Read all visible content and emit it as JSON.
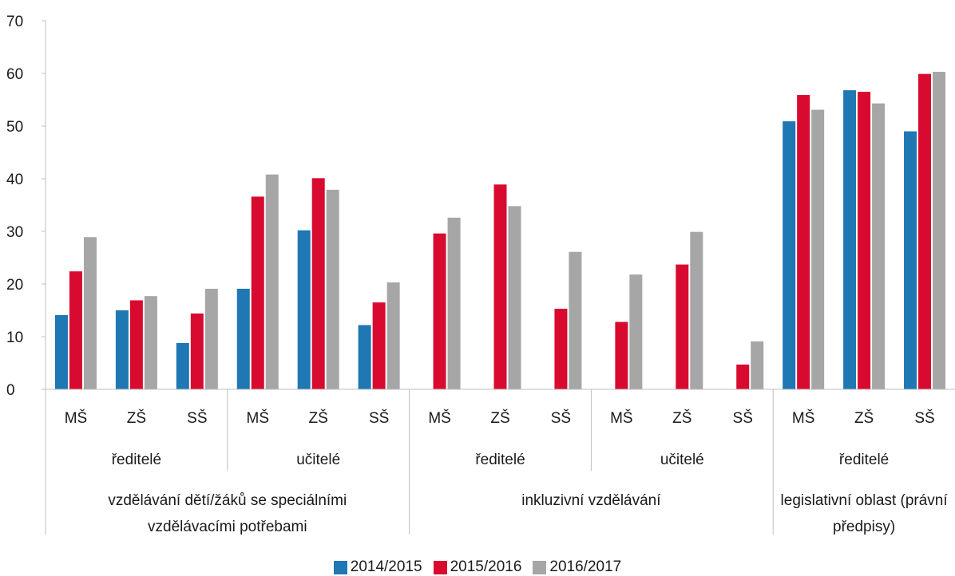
{
  "chart_data": {
    "type": "bar",
    "ylim": [
      0,
      70
    ],
    "yticks": [
      0,
      10,
      20,
      30,
      40,
      50,
      60,
      70
    ],
    "grid": false,
    "legend_position": "bottom",
    "categories": [
      "MŠ",
      "ZŠ",
      "SŠ",
      "MŠ",
      "ZŠ",
      "SŠ",
      "MŠ",
      "ZŠ",
      "SŠ",
      "MŠ",
      "ZŠ",
      "SŠ",
      "MŠ",
      "ZŠ",
      "SŠ"
    ],
    "level2_groups": [
      {
        "label": "ředitelé",
        "count": 3
      },
      {
        "label": "učitelé",
        "count": 3
      },
      {
        "label": "ředitelé",
        "count": 3
      },
      {
        "label": "učitelé",
        "count": 3
      },
      {
        "label": "ředitelé",
        "count": 3
      }
    ],
    "level3_groups": [
      {
        "lines": [
          "vzdělávání dětí/žáků se speciálními",
          "vzdělávacími potřebami"
        ],
        "count": 6
      },
      {
        "lines": [
          "inkluzivní vzdělávání"
        ],
        "count": 6
      },
      {
        "lines": [
          "legislativní oblast (právní",
          "předpisy)"
        ],
        "count": 3
      }
    ],
    "series": [
      {
        "name": "2014/2015",
        "color": "#1f77b4",
        "values": [
          14.1,
          15.0,
          8.8,
          19.1,
          30.2,
          12.2,
          null,
          null,
          null,
          null,
          null,
          null,
          50.9,
          56.8,
          49.0
        ]
      },
      {
        "name": "2015/2016",
        "color": "#d90a2f",
        "values": [
          22.4,
          16.9,
          14.4,
          36.6,
          40.1,
          16.5,
          29.6,
          38.9,
          15.3,
          12.8,
          23.7,
          4.7,
          55.9,
          56.5,
          59.9
        ]
      },
      {
        "name": "2016/2017",
        "color": "#a6a6a6",
        "values": [
          28.9,
          17.7,
          19.1,
          40.8,
          37.9,
          20.3,
          32.6,
          34.8,
          26.1,
          21.8,
          29.9,
          9.1,
          53.1,
          54.3,
          60.3
        ]
      }
    ]
  }
}
